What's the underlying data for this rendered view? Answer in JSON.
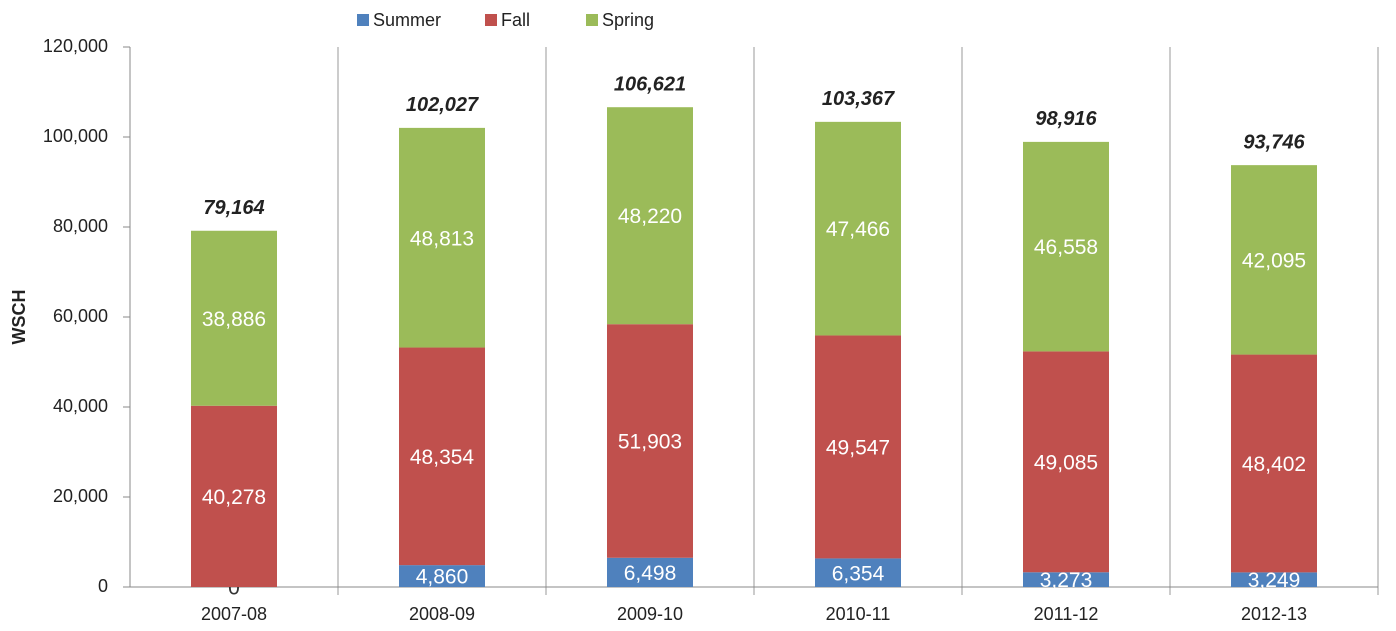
{
  "chart_data": {
    "type": "stacked_bar",
    "y_label": "WSCH",
    "categories": [
      "2007-08",
      "2008-09",
      "2009-10",
      "2010-11",
      "2011-12",
      "2012-13"
    ],
    "series": [
      {
        "name": "Summer",
        "color": "#4f81bd",
        "values": [
          0,
          4860,
          6498,
          6354,
          3273,
          3249
        ],
        "value_labels": [
          "0",
          "4,860",
          "6,498",
          "6,354",
          "3,273",
          "3,249"
        ]
      },
      {
        "name": "Fall",
        "color": "#c0504d",
        "values": [
          40278,
          48354,
          51903,
          49547,
          49085,
          48402
        ],
        "value_labels": [
          "40,278",
          "48,354",
          "51,903",
          "49,547",
          "49,085",
          "48,402"
        ]
      },
      {
        "name": "Spring",
        "color": "#9bbb59",
        "values": [
          38886,
          48813,
          48220,
          47466,
          46558,
          42095
        ],
        "value_labels": [
          "38,886",
          "48,813",
          "48,220",
          "47,466",
          "46,558",
          "42,095"
        ]
      }
    ],
    "totals": {
      "values": [
        79164,
        102027,
        106621,
        103367,
        98916,
        93746
      ],
      "value_labels": [
        "79,164",
        "102,027",
        "106,621",
        "103,367",
        "98,916",
        "93,746"
      ]
    },
    "ylim": [
      0,
      120000
    ],
    "yticks": [
      0,
      {
        "value": 20000,
        "label": "20,000"
      },
      {
        "value": 40000,
        "label": "40,000"
      },
      {
        "value": 60000,
        "label": "60,000"
      },
      {
        "value": 80000,
        "label": "80,000"
      },
      {
        "value": 100000,
        "label": "100,000"
      },
      {
        "value": 120000,
        "label": "120,000"
      }
    ],
    "legend": "top"
  }
}
